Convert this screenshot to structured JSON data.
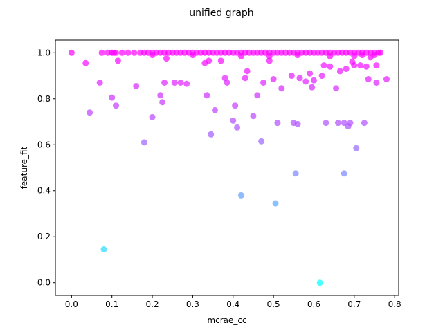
{
  "chart_data": {
    "type": "scatter",
    "title": "unified graph",
    "xlabel": "mcrae_cc",
    "ylabel": "feature_fit",
    "xlim": [
      -0.04,
      0.81
    ],
    "ylim": [
      -0.055,
      1.055
    ],
    "xticks": [
      "0.0",
      "0.1",
      "0.2",
      "0.3",
      "0.4",
      "0.5",
      "0.6",
      "0.7",
      "0.8"
    ],
    "yticks": [
      "0.0",
      "0.2",
      "0.4",
      "0.6",
      "0.8",
      "1.0"
    ],
    "colormap": "cool",
    "color_low": "#00ffff",
    "color_high": "#ff00ff",
    "marker_alpha": 0.7,
    "grid": false,
    "points": [
      {
        "x": 0.0,
        "y": 1.0
      },
      {
        "x": 0.035,
        "y": 0.955
      },
      {
        "x": 0.045,
        "y": 0.74
      },
      {
        "x": 0.07,
        "y": 0.87
      },
      {
        "x": 0.08,
        "y": 0.145
      },
      {
        "x": 0.1,
        "y": 0.805
      },
      {
        "x": 0.11,
        "y": 0.77
      },
      {
        "x": 0.115,
        "y": 0.965
      },
      {
        "x": 0.16,
        "y": 0.855
      },
      {
        "x": 0.18,
        "y": 0.61
      },
      {
        "x": 0.2,
        "y": 0.72
      },
      {
        "x": 0.22,
        "y": 0.815
      },
      {
        "x": 0.225,
        "y": 0.785
      },
      {
        "x": 0.23,
        "y": 0.87
      },
      {
        "x": 0.235,
        "y": 0.975
      },
      {
        "x": 0.255,
        "y": 0.87
      },
      {
        "x": 0.27,
        "y": 0.87
      },
      {
        "x": 0.285,
        "y": 0.865
      },
      {
        "x": 0.33,
        "y": 0.955
      },
      {
        "x": 0.335,
        "y": 0.815
      },
      {
        "x": 0.34,
        "y": 0.965
      },
      {
        "x": 0.345,
        "y": 0.645
      },
      {
        "x": 0.355,
        "y": 0.75
      },
      {
        "x": 0.37,
        "y": 0.965
      },
      {
        "x": 0.38,
        "y": 0.89
      },
      {
        "x": 0.385,
        "y": 0.87
      },
      {
        "x": 0.4,
        "y": 0.705
      },
      {
        "x": 0.405,
        "y": 0.77
      },
      {
        "x": 0.41,
        "y": 0.675
      },
      {
        "x": 0.42,
        "y": 0.38
      },
      {
        "x": 0.43,
        "y": 0.89
      },
      {
        "x": 0.435,
        "y": 0.92
      },
      {
        "x": 0.45,
        "y": 0.725
      },
      {
        "x": 0.46,
        "y": 0.815
      },
      {
        "x": 0.47,
        "y": 0.615
      },
      {
        "x": 0.475,
        "y": 0.87
      },
      {
        "x": 0.49,
        "y": 0.965
      },
      {
        "x": 0.5,
        "y": 0.885
      },
      {
        "x": 0.505,
        "y": 0.345
      },
      {
        "x": 0.51,
        "y": 0.695
      },
      {
        "x": 0.52,
        "y": 0.845
      },
      {
        "x": 0.545,
        "y": 0.9
      },
      {
        "x": 0.55,
        "y": 0.695
      },
      {
        "x": 0.555,
        "y": 0.475
      },
      {
        "x": 0.56,
        "y": 0.69
      },
      {
        "x": 0.565,
        "y": 0.89
      },
      {
        "x": 0.58,
        "y": 0.875
      },
      {
        "x": 0.59,
        "y": 0.91
      },
      {
        "x": 0.595,
        "y": 0.85
      },
      {
        "x": 0.6,
        "y": 0.88
      },
      {
        "x": 0.615,
        "y": 0.0
      },
      {
        "x": 0.62,
        "y": 0.9
      },
      {
        "x": 0.625,
        "y": 0.945
      },
      {
        "x": 0.63,
        "y": 0.695
      },
      {
        "x": 0.64,
        "y": 0.94
      },
      {
        "x": 0.655,
        "y": 0.845
      },
      {
        "x": 0.66,
        "y": 0.695
      },
      {
        "x": 0.665,
        "y": 0.92
      },
      {
        "x": 0.675,
        "y": 0.475
      },
      {
        "x": 0.675,
        "y": 0.695
      },
      {
        "x": 0.68,
        "y": 0.93
      },
      {
        "x": 0.685,
        "y": 0.68
      },
      {
        "x": 0.69,
        "y": 0.695
      },
      {
        "x": 0.695,
        "y": 0.96
      },
      {
        "x": 0.7,
        "y": 0.945
      },
      {
        "x": 0.705,
        "y": 0.585
      },
      {
        "x": 0.715,
        "y": 0.945
      },
      {
        "x": 0.725,
        "y": 0.695
      },
      {
        "x": 0.73,
        "y": 0.94
      },
      {
        "x": 0.735,
        "y": 0.885
      },
      {
        "x": 0.74,
        "y": 0.98
      },
      {
        "x": 0.75,
        "y": 0.99
      },
      {
        "x": 0.755,
        "y": 0.945
      },
      {
        "x": 0.755,
        "y": 0.87
      },
      {
        "x": 0.765,
        "y": 1.0
      },
      {
        "x": 0.78,
        "y": 0.885
      },
      {
        "x": 0.075,
        "y": 1.0
      },
      {
        "x": 0.09,
        "y": 1.0
      },
      {
        "x": 0.1,
        "y": 1.0
      },
      {
        "x": 0.105,
        "y": 1.0
      },
      {
        "x": 0.11,
        "y": 1.0
      },
      {
        "x": 0.125,
        "y": 1.0
      },
      {
        "x": 0.14,
        "y": 1.0
      },
      {
        "x": 0.155,
        "y": 1.0
      },
      {
        "x": 0.17,
        "y": 1.0
      },
      {
        "x": 0.18,
        "y": 1.0
      },
      {
        "x": 0.19,
        "y": 1.0
      },
      {
        "x": 0.2,
        "y": 1.0
      },
      {
        "x": 0.21,
        "y": 1.0
      },
      {
        "x": 0.22,
        "y": 1.0
      },
      {
        "x": 0.23,
        "y": 1.0
      },
      {
        "x": 0.24,
        "y": 1.0
      },
      {
        "x": 0.25,
        "y": 1.0
      },
      {
        "x": 0.26,
        "y": 1.0
      },
      {
        "x": 0.27,
        "y": 1.0
      },
      {
        "x": 0.28,
        "y": 1.0
      },
      {
        "x": 0.29,
        "y": 1.0
      },
      {
        "x": 0.3,
        "y": 1.0
      },
      {
        "x": 0.31,
        "y": 1.0
      },
      {
        "x": 0.32,
        "y": 1.0
      },
      {
        "x": 0.33,
        "y": 1.0
      },
      {
        "x": 0.34,
        "y": 1.0
      },
      {
        "x": 0.35,
        "y": 1.0
      },
      {
        "x": 0.36,
        "y": 1.0
      },
      {
        "x": 0.37,
        "y": 1.0
      },
      {
        "x": 0.38,
        "y": 1.0
      },
      {
        "x": 0.39,
        "y": 1.0
      },
      {
        "x": 0.4,
        "y": 1.0
      },
      {
        "x": 0.41,
        "y": 1.0
      },
      {
        "x": 0.42,
        "y": 1.0
      },
      {
        "x": 0.43,
        "y": 1.0
      },
      {
        "x": 0.44,
        "y": 1.0
      },
      {
        "x": 0.45,
        "y": 1.0
      },
      {
        "x": 0.46,
        "y": 1.0
      },
      {
        "x": 0.47,
        "y": 1.0
      },
      {
        "x": 0.48,
        "y": 1.0
      },
      {
        "x": 0.49,
        "y": 1.0
      },
      {
        "x": 0.5,
        "y": 1.0
      },
      {
        "x": 0.51,
        "y": 1.0
      },
      {
        "x": 0.52,
        "y": 1.0
      },
      {
        "x": 0.53,
        "y": 1.0
      },
      {
        "x": 0.54,
        "y": 1.0
      },
      {
        "x": 0.55,
        "y": 1.0
      },
      {
        "x": 0.56,
        "y": 1.0
      },
      {
        "x": 0.57,
        "y": 1.0
      },
      {
        "x": 0.58,
        "y": 1.0
      },
      {
        "x": 0.59,
        "y": 1.0
      },
      {
        "x": 0.6,
        "y": 1.0
      },
      {
        "x": 0.61,
        "y": 1.0
      },
      {
        "x": 0.62,
        "y": 1.0
      },
      {
        "x": 0.63,
        "y": 1.0
      },
      {
        "x": 0.64,
        "y": 1.0
      },
      {
        "x": 0.65,
        "y": 1.0
      },
      {
        "x": 0.66,
        "y": 1.0
      },
      {
        "x": 0.67,
        "y": 1.0
      },
      {
        "x": 0.68,
        "y": 1.0
      },
      {
        "x": 0.69,
        "y": 1.0
      },
      {
        "x": 0.7,
        "y": 1.0
      },
      {
        "x": 0.71,
        "y": 1.0
      },
      {
        "x": 0.72,
        "y": 1.0
      },
      {
        "x": 0.73,
        "y": 1.0
      },
      {
        "x": 0.74,
        "y": 1.0
      },
      {
        "x": 0.75,
        "y": 1.0
      },
      {
        "x": 0.76,
        "y": 1.0
      },
      {
        "x": 0.2,
        "y": 0.99
      },
      {
        "x": 0.3,
        "y": 0.99
      },
      {
        "x": 0.42,
        "y": 0.985
      },
      {
        "x": 0.49,
        "y": 0.985
      },
      {
        "x": 0.56,
        "y": 0.99
      },
      {
        "x": 0.64,
        "y": 0.985
      },
      {
        "x": 0.7,
        "y": 0.985
      },
      {
        "x": 0.72,
        "y": 0.99
      }
    ]
  }
}
